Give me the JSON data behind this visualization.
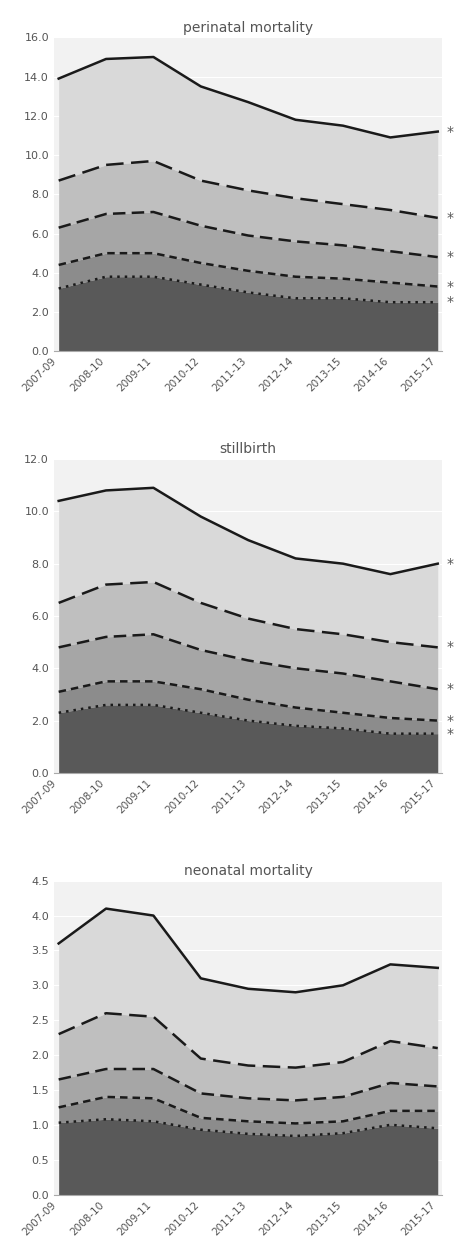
{
  "x_labels": [
    "2007-09",
    "2008-10",
    "2009-11",
    "2010-12",
    "2011-13",
    "2012-14",
    "2013-15",
    "2014-16",
    "2015-17"
  ],
  "perinatal": {
    "title": "perinatal mortality",
    "ylim": [
      0,
      16.0
    ],
    "yticks": [
      0.0,
      2.0,
      4.0,
      6.0,
      8.0,
      10.0,
      12.0,
      14.0,
      16.0
    ],
    "lines": {
      "solid": [
        13.9,
        14.9,
        15.0,
        13.5,
        12.7,
        11.8,
        11.5,
        10.9,
        11.2
      ],
      "dash1": [
        8.7,
        9.5,
        9.7,
        8.7,
        8.2,
        7.8,
        7.5,
        7.2,
        6.8
      ],
      "dash2": [
        6.3,
        7.0,
        7.1,
        6.4,
        5.9,
        5.6,
        5.4,
        5.1,
        4.8
      ],
      "dash3": [
        4.4,
        5.0,
        5.0,
        4.5,
        4.1,
        3.8,
        3.7,
        3.5,
        3.3
      ],
      "dotted": [
        3.2,
        3.8,
        3.8,
        3.4,
        3.0,
        2.7,
        2.7,
        2.5,
        2.5
      ]
    },
    "stars": [
      "*",
      "*",
      "*",
      "*",
      "*"
    ],
    "star_y": [
      11.2,
      6.8,
      4.8,
      3.3,
      2.5
    ]
  },
  "stillbirth": {
    "title": "stillbirth",
    "ylim": [
      0,
      12.0
    ],
    "yticks": [
      0.0,
      2.0,
      4.0,
      6.0,
      8.0,
      10.0,
      12.0
    ],
    "lines": {
      "solid": [
        10.4,
        10.8,
        10.9,
        9.8,
        8.9,
        8.2,
        8.0,
        7.6,
        8.0
      ],
      "dash1": [
        6.5,
        7.2,
        7.3,
        6.5,
        5.9,
        5.5,
        5.3,
        5.0,
        4.8
      ],
      "dash2": [
        4.8,
        5.2,
        5.3,
        4.7,
        4.3,
        4.0,
        3.8,
        3.5,
        3.2
      ],
      "dash3": [
        3.1,
        3.5,
        3.5,
        3.2,
        2.8,
        2.5,
        2.3,
        2.1,
        2.0
      ],
      "dotted": [
        2.3,
        2.6,
        2.6,
        2.3,
        2.0,
        1.8,
        1.7,
        1.5,
        1.5
      ]
    },
    "stars": [
      "*",
      "*",
      "*",
      "*",
      "*"
    ],
    "star_y": [
      8.0,
      4.8,
      3.2,
      2.0,
      1.5
    ]
  },
  "neonatal": {
    "title": "neonatal mortality",
    "ylim": [
      0,
      4.5
    ],
    "yticks": [
      0.0,
      0.5,
      1.0,
      1.5,
      2.0,
      2.5,
      3.0,
      3.5,
      4.0,
      4.5
    ],
    "lines": {
      "solid": [
        3.6,
        4.1,
        4.0,
        3.1,
        2.95,
        2.9,
        3.0,
        3.3,
        3.25
      ],
      "dash1": [
        2.3,
        2.6,
        2.55,
        1.95,
        1.85,
        1.82,
        1.9,
        2.2,
        2.1
      ],
      "dash2": [
        1.65,
        1.8,
        1.8,
        1.45,
        1.38,
        1.35,
        1.4,
        1.6,
        1.55
      ],
      "dash3": [
        1.25,
        1.4,
        1.38,
        1.1,
        1.05,
        1.02,
        1.05,
        1.2,
        1.2
      ],
      "dotted": [
        1.03,
        1.08,
        1.05,
        0.93,
        0.87,
        0.84,
        0.88,
        1.0,
        0.95
      ]
    },
    "stars": [],
    "star_y": []
  },
  "fill_colors": [
    "#d9d9d9",
    "#bfbfbf",
    "#a6a6a6",
    "#8c8c8c",
    "#595959"
  ],
  "line_color": "#1a1a1a",
  "bg_color": "#f2f2f2"
}
